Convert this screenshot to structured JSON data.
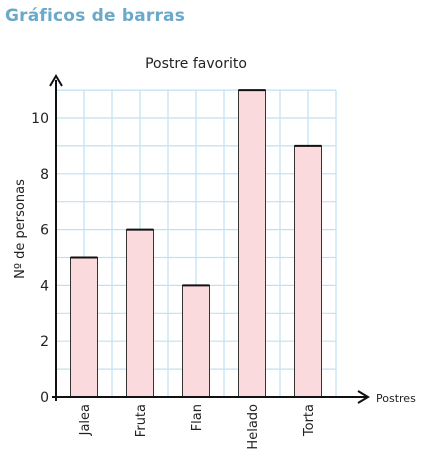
{
  "heading": "Gráficos de barras",
  "chart_data": {
    "type": "bar",
    "title": "Postre favorito",
    "xlabel": "Postres",
    "ylabel": "Nº de personas",
    "categories": [
      "Jalea",
      "Fruta",
      "Flan",
      "Helado",
      "Torta"
    ],
    "values": [
      5,
      6,
      4,
      11,
      9
    ],
    "ylim": [
      0,
      11
    ],
    "yticks": [
      0,
      2,
      4,
      6,
      8,
      10
    ],
    "grid": true,
    "colors": {
      "bar_fill": "#fadadd",
      "bar_stroke": "#333333",
      "grid": "#bfe1f2",
      "axis": "#111111",
      "heading": "#6aa9c9"
    }
  }
}
